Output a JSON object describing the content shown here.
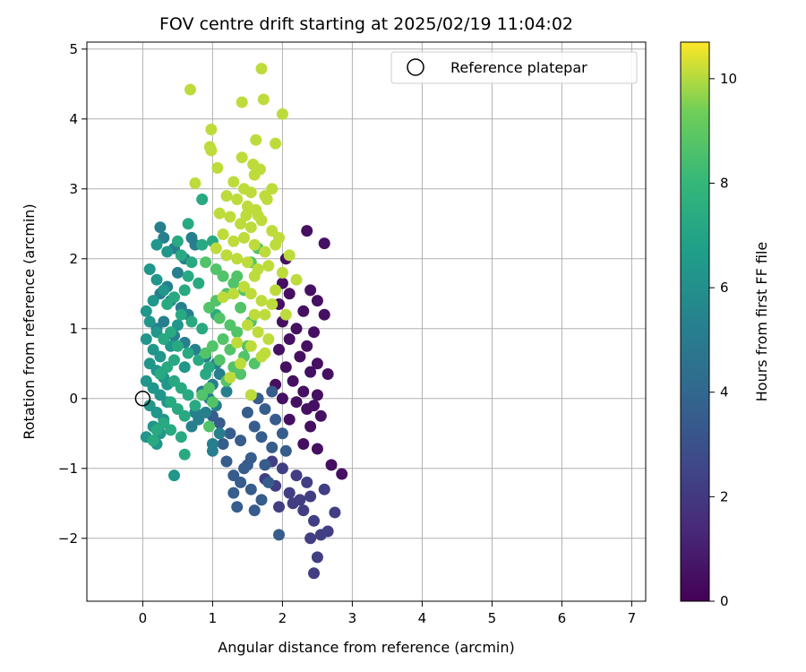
{
  "chart_data": {
    "type": "scatter",
    "title": "FOV centre drift starting at 2025/02/19 11:04:02",
    "xlabel": "Angular distance from reference (arcmin)",
    "ylabel": "Rotation from reference (arcmin)",
    "xlim": [
      -0.8,
      7.2
    ],
    "ylim": [
      -2.9,
      5.1
    ],
    "x_ticks": [
      0,
      1,
      2,
      3,
      4,
      5,
      6,
      7
    ],
    "y_ticks": [
      -2,
      -1,
      0,
      1,
      2,
      3,
      4,
      5
    ],
    "x_tick_labels": [
      "0",
      "1",
      "2",
      "3",
      "4",
      "5",
      "6",
      "7"
    ],
    "y_tick_labels": [
      "−2",
      "−1",
      "0",
      "1",
      "2",
      "3",
      "4",
      "5"
    ],
    "grid": true,
    "legend": {
      "placement": "upper-right",
      "entries": [
        {
          "label": "Reference platepar",
          "marker": "open-circle",
          "x": 0,
          "y": 0
        }
      ]
    },
    "colorbar": {
      "label": "Hours from first FF file",
      "colormap": "viridis",
      "range": [
        0,
        10.7
      ],
      "ticks": [
        0,
        2,
        4,
        6,
        8,
        10
      ],
      "tick_labels": [
        "0",
        "2",
        "4",
        "6",
        "8",
        "10"
      ]
    },
    "series": [
      {
        "c": 0.5,
        "points": [
          [
            2.35,
            2.4
          ],
          [
            2.6,
            2.22
          ],
          [
            2.05,
            2.0
          ],
          [
            2.0,
            1.65
          ],
          [
            2.4,
            1.55
          ],
          [
            2.1,
            1.5
          ],
          [
            2.5,
            1.4
          ],
          [
            1.95,
            1.35
          ],
          [
            2.3,
            1.25
          ],
          [
            2.6,
            1.2
          ],
          [
            2.0,
            1.1
          ],
          [
            2.2,
            1.0
          ],
          [
            2.45,
            0.95
          ],
          [
            2.1,
            0.85
          ],
          [
            2.35,
            0.75
          ],
          [
            1.95,
            0.7
          ],
          [
            2.25,
            0.6
          ],
          [
            2.5,
            0.5
          ],
          [
            2.05,
            0.45
          ],
          [
            2.4,
            0.38
          ],
          [
            2.65,
            0.35
          ],
          [
            2.15,
            0.25
          ],
          [
            2.3,
            0.1
          ],
          [
            2.5,
            0.05
          ],
          [
            2.0,
            0.0
          ],
          [
            2.2,
            -0.05
          ],
          [
            2.35,
            -0.15
          ],
          [
            2.55,
            -0.25
          ],
          [
            2.1,
            -0.3
          ],
          [
            2.4,
            -0.4
          ],
          [
            2.7,
            -0.95
          ],
          [
            2.85,
            -1.08
          ],
          [
            2.5,
            -0.72
          ],
          [
            2.3,
            -0.65
          ],
          [
            1.9,
            0.2
          ],
          [
            2.45,
            -0.1
          ]
        ]
      },
      {
        "c": 2.2,
        "points": [
          [
            1.85,
            -0.9
          ],
          [
            2.0,
            -1.0
          ],
          [
            2.2,
            -1.1
          ],
          [
            2.35,
            -1.2
          ],
          [
            1.9,
            -1.25
          ],
          [
            2.1,
            -1.35
          ],
          [
            2.4,
            -1.4
          ],
          [
            2.15,
            -1.5
          ],
          [
            1.95,
            -1.55
          ],
          [
            2.3,
            -1.6
          ],
          [
            2.45,
            -1.75
          ],
          [
            2.55,
            -1.95
          ],
          [
            2.65,
            -1.9
          ],
          [
            2.75,
            -1.63
          ],
          [
            2.4,
            -2.0
          ],
          [
            2.5,
            -2.27
          ],
          [
            2.45,
            -2.5
          ],
          [
            1.75,
            -1.15
          ],
          [
            2.6,
            -1.3
          ],
          [
            2.25,
            -1.45
          ]
        ]
      },
      {
        "c": 3.5,
        "points": [
          [
            1.6,
            -0.4
          ],
          [
            1.7,
            -0.55
          ],
          [
            1.85,
            -0.7
          ],
          [
            1.55,
            -0.85
          ],
          [
            1.45,
            -1.0
          ],
          [
            1.3,
            -1.1
          ],
          [
            1.4,
            -1.2
          ],
          [
            1.55,
            -1.3
          ],
          [
            1.7,
            -1.45
          ],
          [
            1.6,
            -1.6
          ],
          [
            1.35,
            -1.55
          ],
          [
            1.3,
            -1.35
          ],
          [
            1.8,
            -1.2
          ],
          [
            2.0,
            -0.5
          ],
          [
            1.9,
            -0.3
          ],
          [
            1.75,
            -0.15
          ],
          [
            1.5,
            -0.2
          ],
          [
            1.65,
            0.0
          ],
          [
            1.85,
            0.1
          ],
          [
            1.4,
            -0.6
          ],
          [
            1.2,
            -0.9
          ],
          [
            1.25,
            -0.5
          ],
          [
            1.1,
            -0.35
          ],
          [
            1.0,
            -0.25
          ],
          [
            1.95,
            -1.95
          ],
          [
            1.5,
            -0.95
          ],
          [
            1.75,
            -0.95
          ],
          [
            2.05,
            -0.75
          ],
          [
            1.15,
            -0.65
          ]
        ]
      },
      {
        "c": 5.2,
        "points": [
          [
            0.7,
            2.3
          ],
          [
            0.75,
            2.2
          ],
          [
            0.6,
            2.0
          ],
          [
            0.5,
            1.8
          ],
          [
            0.35,
            1.6
          ],
          [
            0.25,
            1.5
          ],
          [
            0.4,
            1.4
          ],
          [
            0.55,
            1.3
          ],
          [
            0.65,
            1.2
          ],
          [
            0.3,
            1.1
          ],
          [
            0.2,
            1.0
          ],
          [
            0.45,
            0.9
          ],
          [
            0.6,
            0.8
          ],
          [
            0.75,
            0.7
          ],
          [
            0.9,
            0.6
          ],
          [
            1.05,
            0.5
          ],
          [
            1.1,
            0.35
          ],
          [
            1.0,
            0.2
          ],
          [
            0.85,
            0.1
          ],
          [
            0.95,
            0.0
          ],
          [
            1.05,
            -0.1
          ],
          [
            0.9,
            -0.2
          ],
          [
            0.8,
            -0.3
          ],
          [
            0.7,
            -0.4
          ],
          [
            1.1,
            -0.5
          ],
          [
            1.0,
            -0.65
          ],
          [
            1.0,
            -0.75
          ],
          [
            0.75,
            -0.2
          ],
          [
            1.2,
            0.1
          ],
          [
            0.25,
            2.45
          ],
          [
            0.3,
            2.3
          ],
          [
            0.45,
            2.15
          ]
        ]
      },
      {
        "c": 6.3,
        "points": [
          [
            0.1,
            1.85
          ],
          [
            0.2,
            1.7
          ],
          [
            0.3,
            1.55
          ],
          [
            0.15,
            1.4
          ],
          [
            0.05,
            1.25
          ],
          [
            0.1,
            1.1
          ],
          [
            0.2,
            0.95
          ],
          [
            0.05,
            0.85
          ],
          [
            0.15,
            0.7
          ],
          [
            0.25,
            0.6
          ],
          [
            0.1,
            0.5
          ],
          [
            0.2,
            0.4
          ],
          [
            0.3,
            0.3
          ],
          [
            0.05,
            0.25
          ],
          [
            0.15,
            0.15
          ],
          [
            0.25,
            0.05
          ],
          [
            0.35,
            -0.05
          ],
          [
            0.1,
            -0.1
          ],
          [
            0.2,
            -0.2
          ],
          [
            0.3,
            -0.3
          ],
          [
            0.15,
            -0.4
          ],
          [
            0.25,
            -0.5
          ],
          [
            0.05,
            -0.55
          ],
          [
            0.45,
            -1.1
          ],
          [
            0.2,
            -0.65
          ],
          [
            0.5,
            1.05
          ],
          [
            0.4,
            0.75
          ],
          [
            0.35,
            0.2
          ],
          [
            0.6,
            0.45
          ],
          [
            0.2,
            2.2
          ],
          [
            0.35,
            2.1
          ]
        ]
      },
      {
        "c": 7.3,
        "points": [
          [
            0.5,
            2.25
          ],
          [
            0.55,
            2.05
          ],
          [
            0.7,
            1.95
          ],
          [
            0.65,
            1.75
          ],
          [
            0.8,
            1.65
          ],
          [
            0.6,
            1.55
          ],
          [
            0.45,
            1.45
          ],
          [
            0.35,
            1.35
          ],
          [
            0.55,
            1.2
          ],
          [
            0.7,
            1.1
          ],
          [
            0.85,
            1.0
          ],
          [
            0.4,
            0.95
          ],
          [
            0.3,
            0.85
          ],
          [
            0.5,
            0.75
          ],
          [
            0.65,
            0.65
          ],
          [
            0.8,
            0.55
          ],
          [
            0.95,
            0.45
          ],
          [
            0.45,
            0.55
          ],
          [
            0.35,
            0.45
          ],
          [
            0.25,
            0.35
          ],
          [
            0.45,
            0.25
          ],
          [
            0.55,
            0.15
          ],
          [
            0.65,
            0.05
          ],
          [
            0.4,
            -0.05
          ],
          [
            0.5,
            -0.15
          ],
          [
            0.6,
            -0.25
          ],
          [
            0.3,
            -0.35
          ],
          [
            0.4,
            -0.45
          ],
          [
            0.55,
            -0.55
          ],
          [
            0.2,
            -0.45
          ],
          [
            0.65,
            2.5
          ],
          [
            0.85,
            2.2
          ],
          [
            1.0,
            2.25
          ],
          [
            0.6,
            -0.8
          ],
          [
            0.85,
            2.85
          ],
          [
            1.05,
            1.2
          ],
          [
            0.9,
            0.35
          ],
          [
            0.75,
            -0.1
          ],
          [
            0.15,
            -0.6
          ]
        ]
      },
      {
        "c": 8.7,
        "points": [
          [
            0.9,
            1.95
          ],
          [
            1.05,
            1.85
          ],
          [
            1.15,
            1.75
          ],
          [
            1.3,
            1.65
          ],
          [
            1.2,
            1.5
          ],
          [
            1.05,
            1.4
          ],
          [
            0.95,
            1.3
          ],
          [
            1.1,
            1.15
          ],
          [
            1.25,
            1.05
          ],
          [
            1.35,
            0.95
          ],
          [
            1.15,
            0.85
          ],
          [
            1.0,
            0.75
          ],
          [
            0.9,
            0.65
          ],
          [
            1.1,
            0.55
          ],
          [
            1.3,
            0.45
          ],
          [
            1.4,
            0.35
          ],
          [
            1.2,
            0.25
          ],
          [
            0.95,
            0.15
          ],
          [
            0.85,
            0.05
          ],
          [
            1.0,
            -0.05
          ],
          [
            1.45,
            0.6
          ],
          [
            1.5,
            0.75
          ],
          [
            1.6,
            0.5
          ],
          [
            1.55,
            1.1
          ],
          [
            1.4,
            1.3
          ],
          [
            1.45,
            1.55
          ],
          [
            1.35,
            1.75
          ],
          [
            1.55,
            1.95
          ],
          [
            1.65,
            2.15
          ],
          [
            0.95,
            -0.4
          ],
          [
            1.2,
            2.05
          ],
          [
            1.25,
            0.7
          ]
        ]
      },
      {
        "c": 10.1,
        "points": [
          [
            1.7,
            4.72
          ],
          [
            0.68,
            4.42
          ],
          [
            1.73,
            4.28
          ],
          [
            1.42,
            4.24
          ],
          [
            2.0,
            4.07
          ],
          [
            0.98,
            3.85
          ],
          [
            1.62,
            3.7
          ],
          [
            1.9,
            3.65
          ],
          [
            0.96,
            3.6
          ],
          [
            0.98,
            3.55
          ],
          [
            1.42,
            3.45
          ],
          [
            1.58,
            3.35
          ],
          [
            1.68,
            3.28
          ],
          [
            1.6,
            3.2
          ],
          [
            1.07,
            3.3
          ],
          [
            0.75,
            3.08
          ],
          [
            1.3,
            3.1
          ],
          [
            1.45,
            3.0
          ],
          [
            1.55,
            2.95
          ],
          [
            1.75,
            2.9
          ],
          [
            1.85,
            3.0
          ],
          [
            1.2,
            2.9
          ],
          [
            1.35,
            2.85
          ],
          [
            1.5,
            2.75
          ],
          [
            1.62,
            2.7
          ],
          [
            1.78,
            2.85
          ],
          [
            1.1,
            2.65
          ],
          [
            1.25,
            2.6
          ],
          [
            1.4,
            2.5
          ],
          [
            1.55,
            2.45
          ],
          [
            1.7,
            2.55
          ],
          [
            1.85,
            2.4
          ],
          [
            1.15,
            2.35
          ],
          [
            1.3,
            2.25
          ],
          [
            1.45,
            2.3
          ],
          [
            1.6,
            2.2
          ],
          [
            1.75,
            2.1
          ],
          [
            1.9,
            2.2
          ],
          [
            1.05,
            2.15
          ],
          [
            1.2,
            2.05
          ],
          [
            1.35,
            2.0
          ],
          [
            1.5,
            1.95
          ],
          [
            1.65,
            1.85
          ],
          [
            1.8,
            1.9
          ],
          [
            2.0,
            1.8
          ],
          [
            1.95,
            2.3
          ],
          [
            2.1,
            2.05
          ],
          [
            1.6,
            1.75
          ],
          [
            1.45,
            1.6
          ],
          [
            1.3,
            1.5
          ],
          [
            1.15,
            1.45
          ],
          [
            1.55,
            1.5
          ],
          [
            1.7,
            1.4
          ],
          [
            1.85,
            1.35
          ],
          [
            1.6,
            1.2
          ],
          [
            1.75,
            1.2
          ],
          [
            1.5,
            1.05
          ],
          [
            1.65,
            0.95
          ],
          [
            1.8,
            0.85
          ],
          [
            1.55,
            0.75
          ],
          [
            1.7,
            0.6
          ],
          [
            1.55,
            0.05
          ],
          [
            1.75,
            0.65
          ],
          [
            2.05,
            1.2
          ],
          [
            2.2,
            1.7
          ],
          [
            1.9,
            1.55
          ],
          [
            1.4,
            0.5
          ],
          [
            1.25,
            0.3
          ],
          [
            1.35,
            0.8
          ],
          [
            1.48,
            2.62
          ],
          [
            1.65,
            2.62
          ]
        ]
      }
    ]
  }
}
